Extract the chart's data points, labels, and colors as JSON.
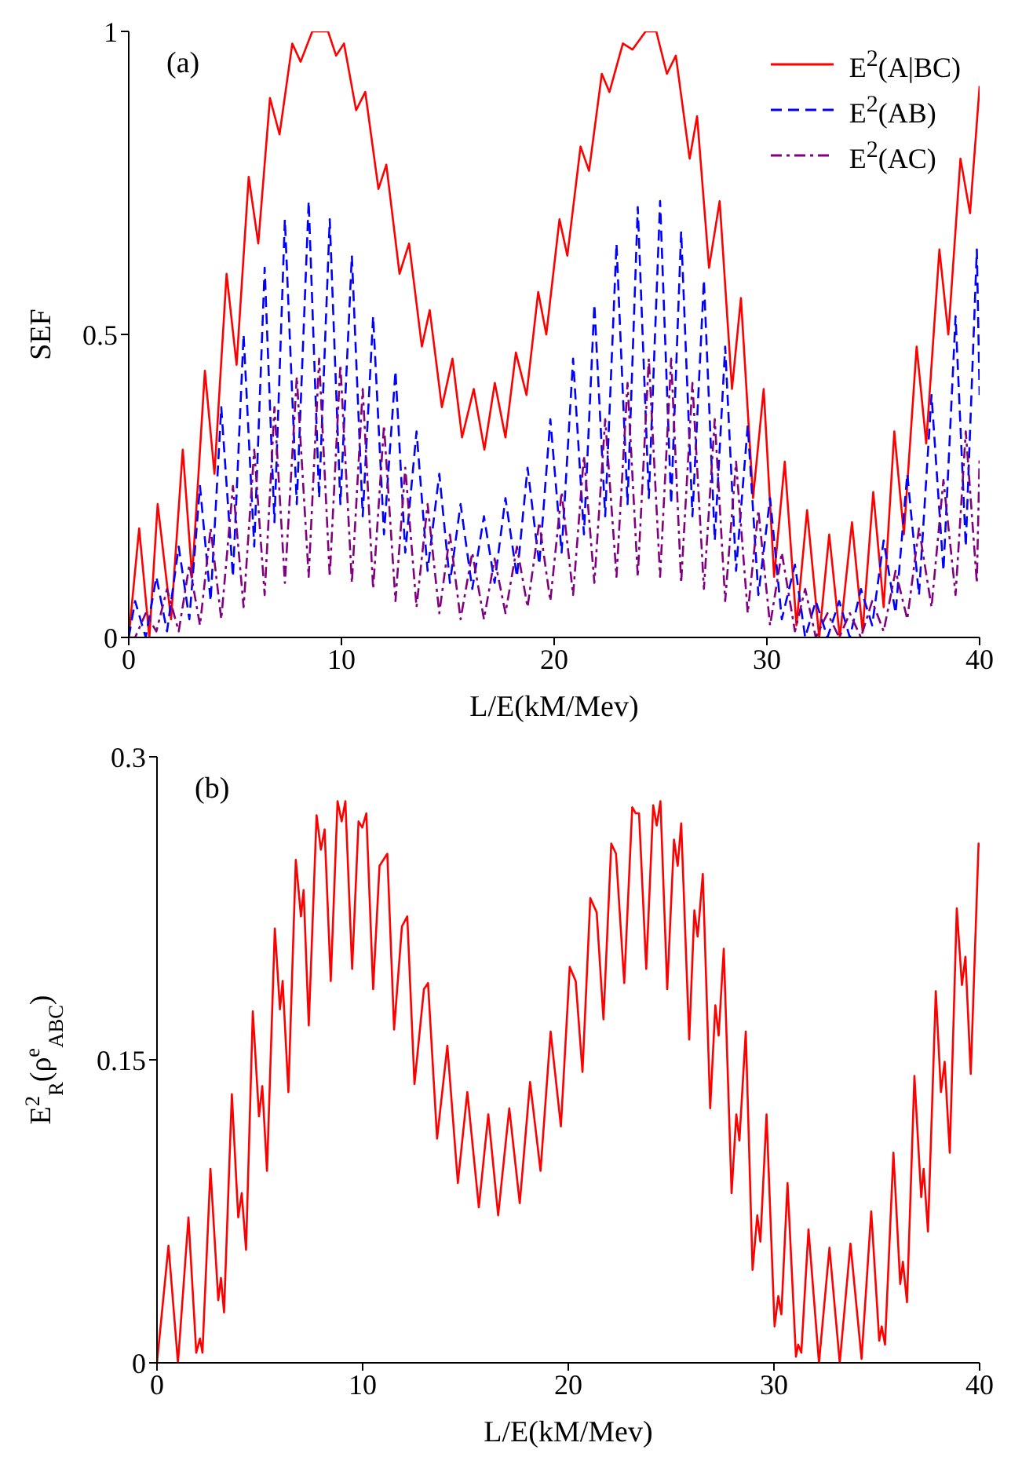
{
  "chart_data": [
    {
      "type": "line",
      "xlabel": "L/E(kM/Mev)",
      "ylabel": "SEF",
      "annotations": [
        "(a)"
      ],
      "legend": "top right",
      "xlim": [
        0,
        40
      ],
      "xticks": [
        0,
        10,
        20,
        30,
        40
      ],
      "ylim": [
        0,
        1
      ],
      "yticks": [
        0,
        0.5,
        1
      ],
      "series": [
        {
          "name": "E$^{2}$(A|BC)",
          "color": "#ff0000",
          "line_style": "solid",
          "x": [
            0,
            0.49,
            0.97,
            1.36,
            1.99,
            2.54,
            2.98,
            3.58,
            4.03,
            4.6,
            5.07,
            5.64,
            6.09,
            6.64,
            7.09,
            7.69,
            8.08,
            8.63,
            9.37,
            9.75,
            10.12,
            10.69,
            11.12,
            11.74,
            12.11,
            12.73,
            13.18,
            13.78,
            14.15,
            14.72,
            15.22,
            15.67,
            16.22,
            16.72,
            17.21,
            17.71,
            18.2,
            18.7,
            19.25,
            19.63,
            20.25,
            20.62,
            21.24,
            21.64,
            22.24,
            22.6,
            23.23,
            23.68,
            24.3,
            24.8,
            25.3,
            25.72,
            26.37,
            26.72,
            27.28,
            27.78,
            28.36,
            28.78,
            29.35,
            29.85,
            30.34,
            30.84,
            31.39,
            31.89,
            32.46,
            32.93,
            33.43,
            34,
            34.5,
            35,
            35.49,
            35.99,
            36.44,
            37.04,
            37.49,
            38.11,
            38.53,
            39.1,
            39.55,
            40
          ],
          "values": [
            0,
            0.18,
            0,
            0.22,
            0.03,
            0.31,
            0.1,
            0.44,
            0.27,
            0.6,
            0.45,
            0.76,
            0.65,
            0.89,
            0.83,
            0.98,
            0.95,
            1,
            1,
            0.96,
            0.98,
            0.87,
            0.9,
            0.74,
            0.78,
            0.6,
            0.65,
            0.48,
            0.54,
            0.38,
            0.46,
            0.33,
            0.41,
            0.31,
            0.42,
            0.33,
            0.47,
            0.4,
            0.57,
            0.5,
            0.69,
            0.63,
            0.81,
            0.77,
            0.93,
            0.9,
            0.98,
            0.97,
            1,
            1,
            0.93,
            0.96,
            0.79,
            0.86,
            0.61,
            0.72,
            0.41,
            0.56,
            0.23,
            0.41,
            0.1,
            0.29,
            0.02,
            0.21,
            0,
            0.17,
            0,
            0.19,
            0.01,
            0.24,
            0.05,
            0.34,
            0.17,
            0.48,
            0.32,
            0.64,
            0.5,
            0.79,
            0.7,
            0.91
          ]
        },
        {
          "name": "E$^{2}$(AB)",
          "color": "#0000ff",
          "line_style": "dashed",
          "x": [
            0,
            0.3,
            0.8,
            1.3,
            1.8,
            2.35,
            2.85,
            3.35,
            3.85,
            4.35,
            4.9,
            5.4,
            5.9,
            6.39,
            6.85,
            7.34,
            7.9,
            8.46,
            8.95,
            9.45,
            9.95,
            10.49,
            11,
            11.49,
            12,
            12.54,
            13,
            13.53,
            14.05,
            14.6,
            15.1,
            15.6,
            16.15,
            16.7,
            17.2,
            17.71,
            18.25,
            18.75,
            19.3,
            19.82,
            20.35,
            20.89,
            21.4,
            21.89,
            22.4,
            22.93,
            23.45,
            23.93,
            24.45,
            24.98,
            25.5,
            25.97,
            26.5,
            27.04,
            27.55,
            28.04,
            28.55,
            29.1,
            29.6,
            30.15,
            30.7,
            31.32,
            31.8,
            32.3,
            32.85,
            33.4,
            33.9,
            34.42,
            34.95,
            35.49,
            36.05,
            36.6,
            37.15,
            37.74,
            38.3,
            38.87,
            39.35,
            39.87,
            40
          ],
          "values": [
            0,
            0.06,
            0,
            0.1,
            0.01,
            0.15,
            0.03,
            0.25,
            0.06,
            0.38,
            0.1,
            0.5,
            0.15,
            0.61,
            0.19,
            0.69,
            0.22,
            0.72,
            0.23,
            0.69,
            0.22,
            0.63,
            0.2,
            0.53,
            0.17,
            0.44,
            0.14,
            0.34,
            0.11,
            0.27,
            0.09,
            0.22,
            0.08,
            0.2,
            0.09,
            0.23,
            0.1,
            0.28,
            0.12,
            0.36,
            0.14,
            0.46,
            0.17,
            0.55,
            0.2,
            0.65,
            0.22,
            0.71,
            0.23,
            0.72,
            0.22,
            0.67,
            0.2,
            0.59,
            0.16,
            0.48,
            0.11,
            0.35,
            0.07,
            0.23,
            0.03,
            0.12,
            0,
            0.06,
            0,
            0.06,
            0,
            0.08,
            0.02,
            0.16,
            0.04,
            0.27,
            0.07,
            0.4,
            0.11,
            0.53,
            0.15,
            0.64,
            0.4
          ]
        },
        {
          "name": "E$^{2}$(AC)",
          "color": "#800080",
          "line_style": "dashdot",
          "x": [
            0,
            0.3,
            0.8,
            1.3,
            1.8,
            2.35,
            2.85,
            3.35,
            3.85,
            4.35,
            4.9,
            5.4,
            5.9,
            6.39,
            6.85,
            7.34,
            7.9,
            8.46,
            8.95,
            9.45,
            9.95,
            10.49,
            11,
            11.49,
            12,
            12.54,
            13,
            13.53,
            14.05,
            14.6,
            15.1,
            15.6,
            16.15,
            16.7,
            17.2,
            17.71,
            18.25,
            18.75,
            19.3,
            19.82,
            20.35,
            20.89,
            21.4,
            21.89,
            22.4,
            22.93,
            23.45,
            23.93,
            24.45,
            24.98,
            25.5,
            25.97,
            26.5,
            27.04,
            27.55,
            28.04,
            28.55,
            29.1,
            29.6,
            30.15,
            30.7,
            31.32,
            31.8,
            32.3,
            32.85,
            33.4,
            33.9,
            34.42,
            34.95,
            35.49,
            36.05,
            36.6,
            37.15,
            37.74,
            38.3,
            38.87,
            39.35,
            39.87,
            40
          ],
          "values": [
            0,
            0,
            0.04,
            0.01,
            0.08,
            0.01,
            0.12,
            0.02,
            0.18,
            0.03,
            0.25,
            0.05,
            0.31,
            0.07,
            0.38,
            0.09,
            0.43,
            0.1,
            0.46,
            0.1,
            0.45,
            0.09,
            0.41,
            0.08,
            0.35,
            0.06,
            0.28,
            0.05,
            0.22,
            0.04,
            0.17,
            0.03,
            0.14,
            0.03,
            0.13,
            0.04,
            0.15,
            0.05,
            0.19,
            0.06,
            0.24,
            0.07,
            0.3,
            0.09,
            0.36,
            0.1,
            0.42,
            0.1,
            0.46,
            0.1,
            0.46,
            0.09,
            0.42,
            0.08,
            0.36,
            0.06,
            0.29,
            0.04,
            0.21,
            0.02,
            0.14,
            0.01,
            0.08,
            0,
            0.04,
            0,
            0.04,
            0,
            0.06,
            0.01,
            0.11,
            0.03,
            0.18,
            0.05,
            0.26,
            0.07,
            0.34,
            0.09,
            0.3
          ]
        }
      ]
    },
    {
      "type": "line",
      "xlabel": "L/E(kM/Mev)",
      "ylabel": "E$^{2}$$_{R}$(ρ$^{e}$$_{ABC}$)",
      "annotations": [
        "(b)"
      ],
      "xlim": [
        0,
        40
      ],
      "xticks": [
        0,
        10,
        20,
        30,
        40
      ],
      "ylim": [
        0,
        0.3
      ],
      "yticks": [
        0,
        0.15,
        0.3
      ],
      "series": [
        {
          "color": "#ff0000",
          "line_style": "solid",
          "x": [
            0,
            0.56,
            1.02,
            1.53,
            1.91,
            2.09,
            2.21,
            2.6,
            2.98,
            3.11,
            3.26,
            3.64,
            3.95,
            4.12,
            4.33,
            4.66,
            4.96,
            5.12,
            5.35,
            5.73,
            5.98,
            6.11,
            6.39,
            6.75,
            7,
            7.13,
            7.38,
            7.76,
            7.97,
            8.15,
            8.45,
            8.78,
            8.98,
            9.16,
            9.49,
            9.8,
            9.98,
            10.18,
            10.51,
            10.82,
            11.2,
            11.53,
            11.91,
            12.17,
            12.52,
            12.98,
            13.18,
            13.62,
            14.12,
            14.63,
            15.09,
            15.65,
            16.11,
            16.59,
            17.13,
            17.64,
            18.14,
            18.65,
            19.14,
            19.64,
            20.07,
            20.36,
            20.69,
            21.07,
            21.38,
            21.71,
            22.09,
            22.32,
            22.72,
            23.11,
            23.28,
            23.44,
            23.79,
            24.13,
            24.3,
            24.48,
            24.81,
            25.14,
            25.32,
            25.49,
            25.88,
            26.13,
            26.29,
            26.54,
            26.9,
            27.15,
            27.31,
            27.56,
            27.94,
            28.17,
            28.32,
            28.63,
            28.96,
            29.19,
            29.34,
            29.64,
            30.03,
            30.21,
            30.36,
            30.66,
            31.07,
            31.18,
            31.33,
            31.68,
            32.19,
            32.7,
            33.2,
            33.72,
            34.26,
            34.73,
            35.12,
            35.24,
            35.4,
            35.81,
            36.14,
            36.27,
            36.47,
            36.83,
            37.16,
            37.28,
            37.49,
            37.87,
            38.12,
            38.3,
            38.55,
            38.89,
            39.14,
            39.31,
            39.57,
            39.95,
            40
          ],
          "values": [
            0,
            0.058,
            0,
            0.072,
            0.005,
            0.012,
            0.005,
            0.096,
            0.031,
            0.042,
            0.025,
            0.133,
            0.072,
            0.084,
            0.056,
            0.174,
            0.122,
            0.137,
            0.095,
            0.215,
            0.175,
            0.189,
            0.134,
            0.249,
            0.221,
            0.234,
            0.167,
            0.271,
            0.254,
            0.264,
            0.189,
            0.278,
            0.268,
            0.278,
            0.195,
            0.268,
            0.265,
            0.272,
            0.185,
            0.246,
            0.252,
            0.165,
            0.216,
            0.221,
            0.138,
            0.185,
            0.188,
            0.111,
            0.157,
            0.089,
            0.134,
            0.077,
            0.123,
            0.073,
            0.126,
            0.079,
            0.139,
            0.095,
            0.164,
            0.117,
            0.196,
            0.189,
            0.144,
            0.23,
            0.223,
            0.17,
            0.257,
            0.252,
            0.188,
            0.275,
            0.272,
            0.272,
            0.195,
            0.276,
            0.266,
            0.278,
            0.185,
            0.259,
            0.246,
            0.267,
            0.16,
            0.224,
            0.211,
            0.242,
            0.126,
            0.177,
            0.162,
            0.205,
            0.084,
            0.123,
            0.11,
            0.164,
            0.046,
            0.073,
            0.06,
            0.123,
            0.018,
            0.033,
            0.024,
            0.089,
            0.003,
            0.009,
            0.005,
            0.066,
            0,
            0.057,
            0,
            0.059,
            0.002,
            0.075,
            0.011,
            0.018,
            0.009,
            0.104,
            0.039,
            0.05,
            0.03,
            0.142,
            0.082,
            0.096,
            0.065,
            0.184,
            0.134,
            0.149,
            0.104,
            0.225,
            0.187,
            0.201,
            0.143,
            0.257,
            0.255
          ]
        }
      ]
    }
  ]
}
